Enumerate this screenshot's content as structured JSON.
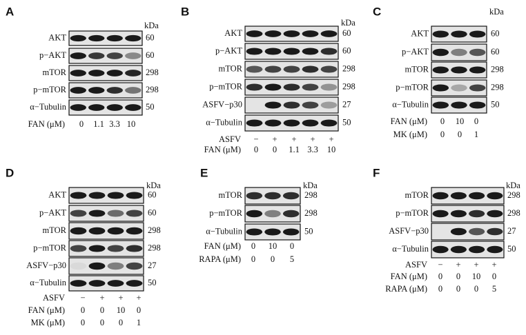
{
  "panels": [
    {
      "letter": "A",
      "kda_header": "kDa",
      "blots": [
        {
          "label": "AKT",
          "kda": "60"
        },
        {
          "label": "p−AKT",
          "kda": "60"
        },
        {
          "label": "mTOR",
          "kda": "298"
        },
        {
          "label": "p−mTOR",
          "kda": "298"
        },
        {
          "label": "α−Tubulin",
          "kda": "50"
        }
      ],
      "conditions": [
        {
          "label": "FAN (μM)",
          "values": [
            "0",
            "1.1",
            "3.3",
            "10"
          ]
        }
      ]
    },
    {
      "letter": "B",
      "kda_header": "kDa",
      "blots": [
        {
          "label": "AKT",
          "kda": "60"
        },
        {
          "label": "p−AKT",
          "kda": "60"
        },
        {
          "label": "mTOR",
          "kda": "298"
        },
        {
          "label": "p−mTOR",
          "kda": "298"
        },
        {
          "label": "ASFV−p30",
          "kda": "27"
        },
        {
          "label": "α−Tubulin",
          "kda": "50"
        }
      ],
      "conditions": [
        {
          "label": "ASFV",
          "values": [
            "−",
            "+",
            "+",
            "+",
            "+"
          ]
        },
        {
          "label": "FAN (μM)",
          "values": [
            "0",
            "0",
            "1.1",
            "3.3",
            "10"
          ]
        }
      ]
    },
    {
      "letter": "C",
      "kda_header": "kDa",
      "blots": [
        {
          "label": "AKT",
          "kda": "60"
        },
        {
          "label": "p−AKT",
          "kda": "60"
        },
        {
          "label": "mTOR",
          "kda": "298"
        },
        {
          "label": "p−mTOR",
          "kda": "298"
        },
        {
          "label": "α−Tubulin",
          "kda": "50"
        }
      ],
      "conditions": [
        {
          "label": "FAN (μM)",
          "values": [
            "0",
            "10",
            "0"
          ]
        },
        {
          "label": "MK (μM)",
          "values": [
            "0",
            "0",
            "1"
          ]
        }
      ]
    },
    {
      "letter": "D",
      "kda_header": "kDa",
      "blots": [
        {
          "label": "AKT",
          "kda": "60"
        },
        {
          "label": "p−AKT",
          "kda": "60"
        },
        {
          "label": "mTOR",
          "kda": "298"
        },
        {
          "label": "p−mTOR",
          "kda": "298"
        },
        {
          "label": "ASFV−p30",
          "kda": "27"
        },
        {
          "label": "α−Tubulin",
          "kda": "50"
        }
      ],
      "conditions": [
        {
          "label": "ASFV",
          "values": [
            "−",
            "+",
            "+",
            "+"
          ]
        },
        {
          "label": "FAN (μM)",
          "values": [
            "0",
            "0",
            "10",
            "0"
          ]
        },
        {
          "label": "MK (μM)",
          "values": [
            "0",
            "0",
            "0",
            "1"
          ]
        }
      ]
    },
    {
      "letter": "E",
      "kda_header": "kDa",
      "blots": [
        {
          "label": "mTOR",
          "kda": "298"
        },
        {
          "label": "p−mTOR",
          "kda": "298"
        },
        {
          "label": "α−Tubulin",
          "kda": "50"
        }
      ],
      "conditions": [
        {
          "label": "FAN (μM)",
          "values": [
            "0",
            "10",
            "0"
          ]
        },
        {
          "label": "RAPA (μM)",
          "values": [
            "0",
            "0",
            "5"
          ]
        }
      ]
    },
    {
      "letter": "F",
      "kda_header": "kDa",
      "blots": [
        {
          "label": "mTOR",
          "kda": "298"
        },
        {
          "label": "p−mTOR",
          "kda": "298"
        },
        {
          "label": "ASFV−p30",
          "kda": "27"
        },
        {
          "label": "α−Tubulin",
          "kda": "50"
        }
      ],
      "conditions": [
        {
          "label": "ASFV",
          "values": [
            "−",
            "+",
            "+",
            "+"
          ]
        },
        {
          "label": "FAN (μM)",
          "values": [
            "0",
            "0",
            "10",
            "0"
          ]
        },
        {
          "label": "RAPA (μM)",
          "values": [
            "0",
            "0",
            "0",
            "5"
          ]
        }
      ]
    }
  ]
}
